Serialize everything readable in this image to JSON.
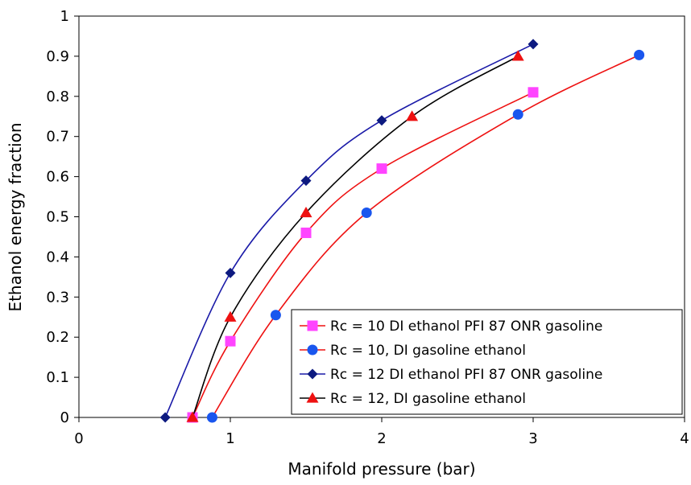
{
  "chart_data": {
    "type": "line",
    "title": "",
    "xlabel": "Manifold pressure (bar)",
    "ylabel": "Ethanol energy fraction",
    "xlim": [
      0,
      4
    ],
    "ylim": [
      0,
      1
    ],
    "x_ticks": [
      0,
      1,
      2,
      3,
      4
    ],
    "y_ticks": [
      0,
      0.1,
      0.2,
      0.3,
      0.4,
      0.5,
      0.6,
      0.7,
      0.8,
      0.9,
      1
    ],
    "grid": false,
    "legend_position": "bottom-right",
    "series": [
      {
        "name": "Rc = 10 DI ethanol PFI 87 ONR gasoline",
        "color": "#ee1111",
        "marker": "square",
        "marker_color": "#ff44ff",
        "x": [
          0.75,
          1.0,
          1.5,
          2.0,
          3.0
        ],
        "y": [
          0,
          0.19,
          0.46,
          0.62,
          0.81
        ]
      },
      {
        "name": "Rc = 10, DI gasoline ethanol",
        "color": "#ee1111",
        "marker": "circle",
        "marker_color": "#1a56ee",
        "x": [
          0.88,
          1.3,
          1.9,
          2.9,
          3.7
        ],
        "y": [
          0,
          0.255,
          0.51,
          0.755,
          0.903
        ]
      },
      {
        "name": "Rc = 12 DI ethanol PFI 87 ONR gasoline",
        "color": "#1a1aa8",
        "marker": "diamond",
        "marker_color": "#0d1a80",
        "x": [
          0.57,
          1.0,
          1.5,
          2.0,
          3.0
        ],
        "y": [
          0,
          0.36,
          0.59,
          0.74,
          0.93
        ]
      },
      {
        "name": "Rc = 12, DI gasoline ethanol",
        "color": "#000000",
        "marker": "triangle",
        "marker_color": "#ee1111",
        "x": [
          0.75,
          1.0,
          1.5,
          2.2,
          2.9
        ],
        "y": [
          0,
          0.25,
          0.51,
          0.75,
          0.9
        ]
      }
    ]
  }
}
